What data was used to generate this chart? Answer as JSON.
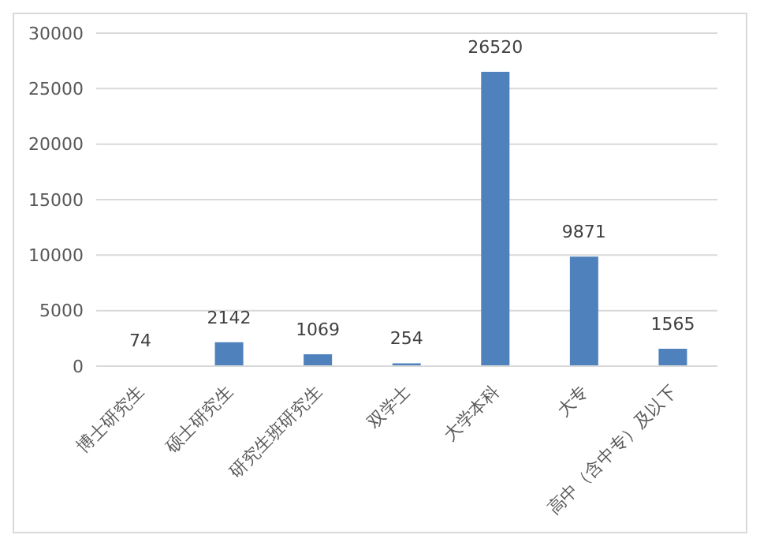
{
  "chart_data": {
    "type": "bar",
    "categories": [
      "博士研究生",
      "硕士研究生",
      "研究生班研究生",
      "双学士",
      "大学本科",
      "大专",
      "高中（含中专）及以下"
    ],
    "values": [
      74,
      2142,
      1069,
      254,
      26520,
      9871,
      1565
    ],
    "color": "#4f81bd",
    "ylim": [
      0,
      30000
    ],
    "yticks": [
      0,
      5000,
      10000,
      15000,
      20000,
      25000,
      30000
    ],
    "grid": "y",
    "data_labels": true
  }
}
